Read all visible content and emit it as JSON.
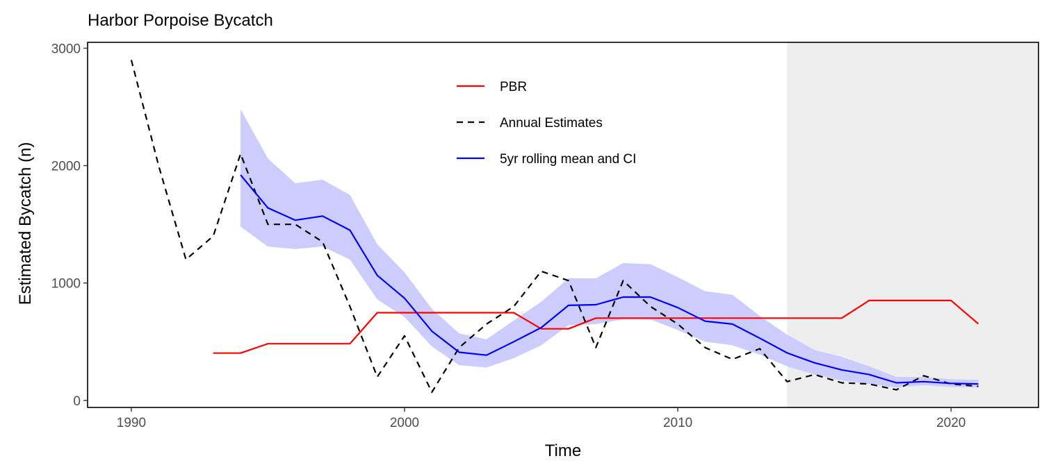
{
  "chart_data": {
    "type": "line",
    "title": "Harbor Porpoise Bycatch",
    "xlabel": "Time",
    "ylabel": "Estimated Bycatch (n)",
    "xlim": [
      1988.4,
      2023.2
    ],
    "ylim": [
      -60,
      3050
    ],
    "x_ticks": [
      1990,
      2000,
      2010,
      2020
    ],
    "x_tick_labels": [
      "1990",
      "2000",
      "2010",
      "2020"
    ],
    "y_ticks": [
      0,
      1000,
      2000,
      3000
    ],
    "y_tick_labels": [
      "0",
      "1000",
      "2000",
      "3000"
    ],
    "shaded_region": {
      "x_start": 2014,
      "x_end": 2023.2,
      "color": "#eeeeee"
    },
    "legend_position": "top-center",
    "series": [
      {
        "name": "PBR",
        "style": "solid",
        "color": "#ff0000",
        "x": [
          1993,
          1994,
          1995,
          1996,
          1997,
          1998,
          1999,
          2000,
          2001,
          2002,
          2003,
          2004,
          2005,
          2006,
          2007,
          2008,
          2009,
          2010,
          2011,
          2012,
          2013,
          2014,
          2015,
          2016,
          2017,
          2018,
          2019,
          2020,
          2021
        ],
        "values": [
          403,
          403,
          483,
          483,
          483,
          483,
          747,
          747,
          747,
          747,
          747,
          747,
          610,
          610,
          701,
          701,
          701,
          701,
          701,
          701,
          701,
          701,
          701,
          701,
          851,
          851,
          851,
          851,
          652
        ]
      },
      {
        "name": "Annual Estimates",
        "style": "dashed",
        "color": "#000000",
        "x": [
          1990,
          1991,
          1992,
          1993,
          1994,
          1995,
          1996,
          1997,
          1998,
          1999,
          2000,
          2001,
          2002,
          2003,
          2004,
          2005,
          2006,
          2007,
          2008,
          2009,
          2010,
          2011,
          2012,
          2013,
          2014,
          2015,
          2016,
          2017,
          2018,
          2019,
          2020,
          2021
        ],
        "values": [
          2900,
          2000,
          1200,
          1400,
          2100,
          1500,
          1500,
          1350,
          800,
          200,
          550,
          70,
          450,
          650,
          800,
          1100,
          1020,
          450,
          1020,
          800,
          650,
          450,
          350,
          440,
          160,
          220,
          150,
          140,
          90,
          210,
          140,
          120
        ]
      },
      {
        "name": "5yr rolling mean and CI",
        "style": "solid",
        "color": "#0000ff",
        "x": [
          1994,
          1995,
          1996,
          1997,
          1998,
          1999,
          2000,
          2001,
          2002,
          2003,
          2004,
          2005,
          2006,
          2007,
          2008,
          2009,
          2010,
          2011,
          2012,
          2013,
          2014,
          2015,
          2016,
          2017,
          2018,
          2019,
          2020,
          2021
        ],
        "values": [
          1920,
          1640,
          1535,
          1570,
          1450,
          1065,
          870,
          590,
          410,
          385,
          500,
          620,
          810,
          815,
          880,
          880,
          790,
          675,
          650,
          530,
          405,
          320,
          260,
          220,
          150,
          160,
          145,
          140
        ],
        "ci_lower": [
          1480,
          1310,
          1290,
          1310,
          1200,
          860,
          710,
          460,
          300,
          280,
          360,
          470,
          640,
          650,
          690,
          690,
          600,
          500,
          470,
          390,
          290,
          220,
          170,
          140,
          110,
          130,
          115,
          110
        ],
        "ci_upper": [
          2480,
          2060,
          1850,
          1880,
          1750,
          1330,
          1090,
          780,
          570,
          520,
          680,
          840,
          1040,
          1040,
          1170,
          1160,
          1050,
          930,
          900,
          720,
          560,
          430,
          370,
          290,
          200,
          200,
          180,
          175
        ],
        "ci_color": "#ccccff"
      }
    ]
  }
}
